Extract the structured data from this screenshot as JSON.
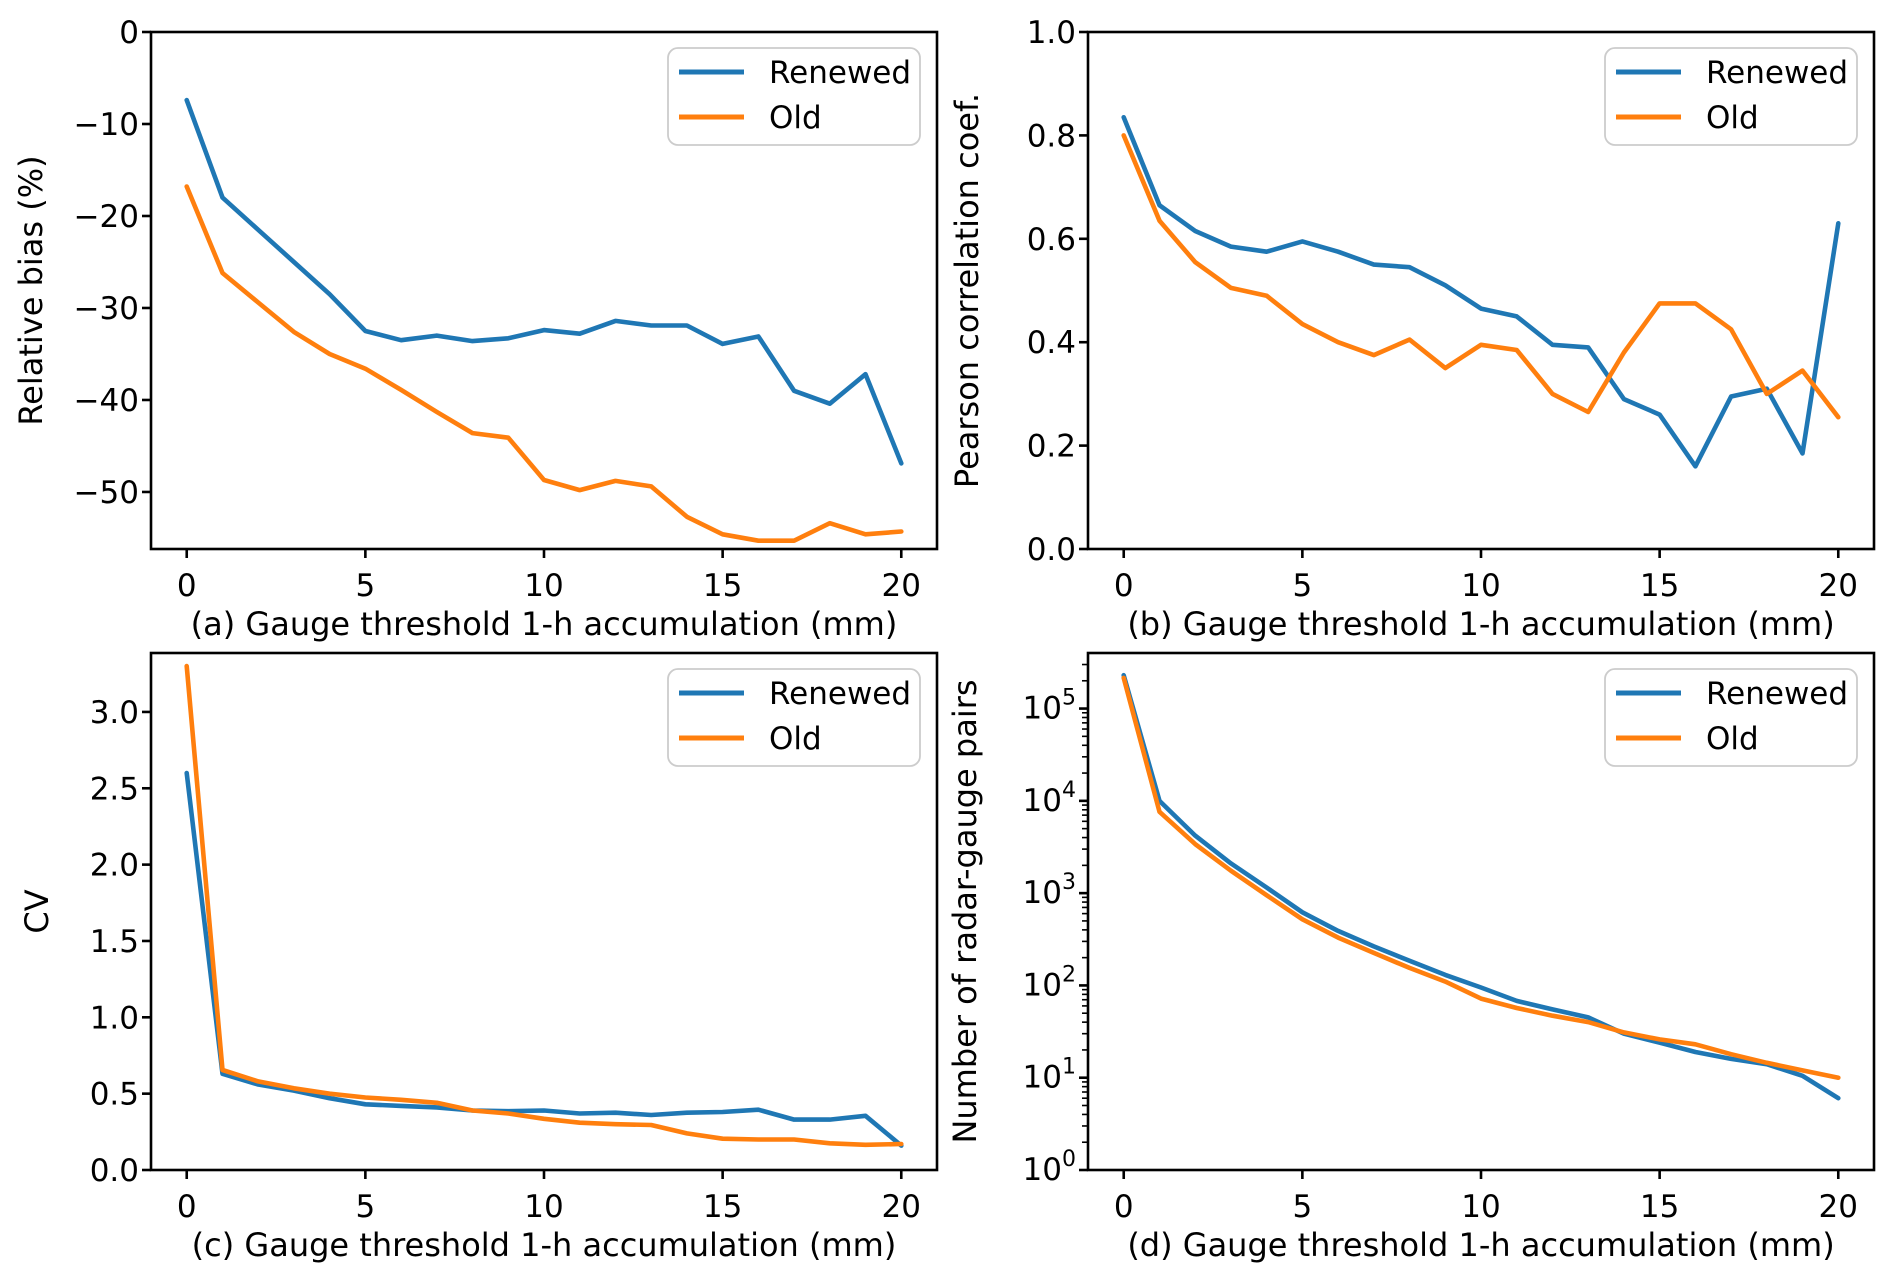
{
  "figure": {
    "background": "#ffffff"
  },
  "colors": {
    "renewed": "#1f77b4",
    "old": "#ff7f0e",
    "legend_edge": "#cccccc",
    "axis": "#000000"
  },
  "legend": {
    "items": [
      {
        "label": "Renewed",
        "color": "#1f77b4"
      },
      {
        "label": "Old",
        "color": "#ff7f0e"
      }
    ]
  },
  "chart_data": [
    {
      "id": "a",
      "type": "line",
      "caption": "(a) Gauge threshold 1-h accumulation (mm)",
      "ylabel": "Relative bias (%)",
      "x": [
        0,
        1,
        2,
        3,
        4,
        5,
        6,
        7,
        8,
        9,
        10,
        11,
        12,
        13,
        14,
        15,
        16,
        17,
        18,
        19,
        20
      ],
      "xlim": [
        -1,
        21
      ],
      "ylim": [
        -56.2,
        0
      ],
      "yscale": "linear",
      "grid": false,
      "legend_position": "upper right",
      "xticks": {
        "values": [
          0,
          5,
          10,
          15,
          20
        ],
        "labels": [
          "0",
          "5",
          "10",
          "15",
          "20"
        ]
      },
      "yticks": {
        "values": [
          0,
          -10,
          -20,
          -30,
          -40,
          -50
        ],
        "labels": [
          "0",
          "−10",
          "−20",
          "−30",
          "−40",
          "−50"
        ]
      },
      "series": [
        {
          "name": "Renewed",
          "color": "#1f77b4",
          "values": [
            -7.4,
            -18.0,
            -21.5,
            -25.0,
            -28.5,
            -32.5,
            -33.5,
            -33.0,
            -33.6,
            -33.3,
            -32.4,
            -32.8,
            -31.4,
            -31.9,
            -31.9,
            -33.9,
            -33.1,
            -39.0,
            -40.4,
            -37.2,
            -46.9
          ]
        },
        {
          "name": "Old",
          "color": "#ff7f0e",
          "values": [
            -16.8,
            -26.2,
            -29.4,
            -32.6,
            -35.0,
            -36.6,
            -38.9,
            -41.3,
            -43.6,
            -44.1,
            -48.7,
            -49.8,
            -48.8,
            -49.4,
            -52.7,
            -54.6,
            -55.3,
            -55.3,
            -53.4,
            -54.6,
            -54.3
          ]
        }
      ]
    },
    {
      "id": "b",
      "type": "line",
      "caption": "(b) Gauge threshold 1-h accumulation (mm)",
      "ylabel": "Pearson correlation coef.",
      "x": [
        0,
        1,
        2,
        3,
        4,
        5,
        6,
        7,
        8,
        9,
        10,
        11,
        12,
        13,
        14,
        15,
        16,
        17,
        18,
        19,
        20
      ],
      "xlim": [
        -1,
        21
      ],
      "ylim": [
        0.0,
        1.0
      ],
      "yscale": "linear",
      "grid": false,
      "legend_position": "upper right",
      "xticks": {
        "values": [
          0,
          5,
          10,
          15,
          20
        ],
        "labels": [
          "0",
          "5",
          "10",
          "15",
          "20"
        ]
      },
      "yticks": {
        "values": [
          0.0,
          0.2,
          0.4,
          0.6,
          0.8,
          1.0
        ],
        "labels": [
          "0.0",
          "0.2",
          "0.4",
          "0.6",
          "0.8",
          "1.0"
        ]
      },
      "series": [
        {
          "name": "Renewed",
          "color": "#1f77b4",
          "values": [
            0.835,
            0.665,
            0.615,
            0.585,
            0.575,
            0.595,
            0.575,
            0.55,
            0.545,
            0.51,
            0.465,
            0.45,
            0.395,
            0.39,
            0.29,
            0.26,
            0.16,
            0.295,
            0.31,
            0.185,
            0.63
          ]
        },
        {
          "name": "Old",
          "color": "#ff7f0e",
          "values": [
            0.8,
            0.635,
            0.555,
            0.505,
            0.49,
            0.435,
            0.4,
            0.375,
            0.405,
            0.35,
            0.395,
            0.385,
            0.3,
            0.265,
            0.38,
            0.475,
            0.475,
            0.425,
            0.3,
            0.345,
            0.255
          ]
        }
      ]
    },
    {
      "id": "c",
      "type": "line",
      "caption": "(c) Gauge threshold 1-h accumulation (mm)",
      "ylabel": "CV",
      "x": [
        0,
        1,
        2,
        3,
        4,
        5,
        6,
        7,
        8,
        9,
        10,
        11,
        12,
        13,
        14,
        15,
        16,
        17,
        18,
        19,
        20
      ],
      "xlim": [
        -1,
        21
      ],
      "ylim": [
        0.0,
        3.386
      ],
      "yscale": "linear",
      "grid": false,
      "legend_position": "upper right",
      "xticks": {
        "values": [
          0,
          5,
          10,
          15,
          20
        ],
        "labels": [
          "0",
          "5",
          "10",
          "15",
          "20"
        ]
      },
      "yticks": {
        "values": [
          0.0,
          0.5,
          1.0,
          1.5,
          2.0,
          2.5,
          3.0
        ],
        "labels": [
          "0.0",
          "0.5",
          "1.0",
          "1.5",
          "2.0",
          "2.5",
          "3.0"
        ]
      },
      "series": [
        {
          "name": "Renewed",
          "color": "#1f77b4",
          "values": [
            2.6,
            0.63,
            0.56,
            0.52,
            0.47,
            0.43,
            0.42,
            0.41,
            0.39,
            0.385,
            0.39,
            0.37,
            0.375,
            0.36,
            0.375,
            0.38,
            0.395,
            0.33,
            0.33,
            0.355,
            0.16
          ]
        },
        {
          "name": "Old",
          "color": "#ff7f0e",
          "values": [
            3.3,
            0.655,
            0.58,
            0.535,
            0.5,
            0.475,
            0.46,
            0.44,
            0.39,
            0.37,
            0.335,
            0.31,
            0.3,
            0.295,
            0.24,
            0.205,
            0.2,
            0.2,
            0.175,
            0.165,
            0.17
          ]
        }
      ]
    },
    {
      "id": "d",
      "type": "line",
      "caption": "(d) Gauge threshold 1-h accumulation (mm)",
      "ylabel": "Number of radar-gauge pairs",
      "x": [
        0,
        1,
        2,
        3,
        4,
        5,
        6,
        7,
        8,
        9,
        10,
        11,
        12,
        13,
        14,
        15,
        16,
        17,
        18,
        19,
        20
      ],
      "xlim": [
        -1,
        21
      ],
      "ylim": [
        1,
        400000
      ],
      "yscale": "log",
      "grid": false,
      "legend_position": "upper right",
      "xticks": {
        "values": [
          0,
          5,
          10,
          15,
          20
        ],
        "labels": [
          "0",
          "5",
          "10",
          "15",
          "20"
        ]
      },
      "yticks": {
        "values": [
          1,
          10,
          100,
          1000,
          10000,
          100000
        ],
        "base": 10,
        "exponents": [
          0,
          1,
          2,
          3,
          4,
          5
        ]
      },
      "series": [
        {
          "name": "Renewed",
          "color": "#1f77b4",
          "values": [
            230000,
            10000,
            4200,
            2100,
            1150,
            620,
            390,
            265,
            185,
            130,
            95,
            68,
            55,
            45,
            30,
            24,
            19,
            16,
            14,
            10.5,
            6
          ]
        },
        {
          "name": "Old",
          "color": "#ff7f0e",
          "values": [
            215000,
            7600,
            3400,
            1750,
            950,
            520,
            330,
            225,
            155,
            110,
            72,
            57,
            47,
            40,
            31,
            26,
            23,
            18,
            14.5,
            12,
            10
          ]
        }
      ]
    }
  ]
}
